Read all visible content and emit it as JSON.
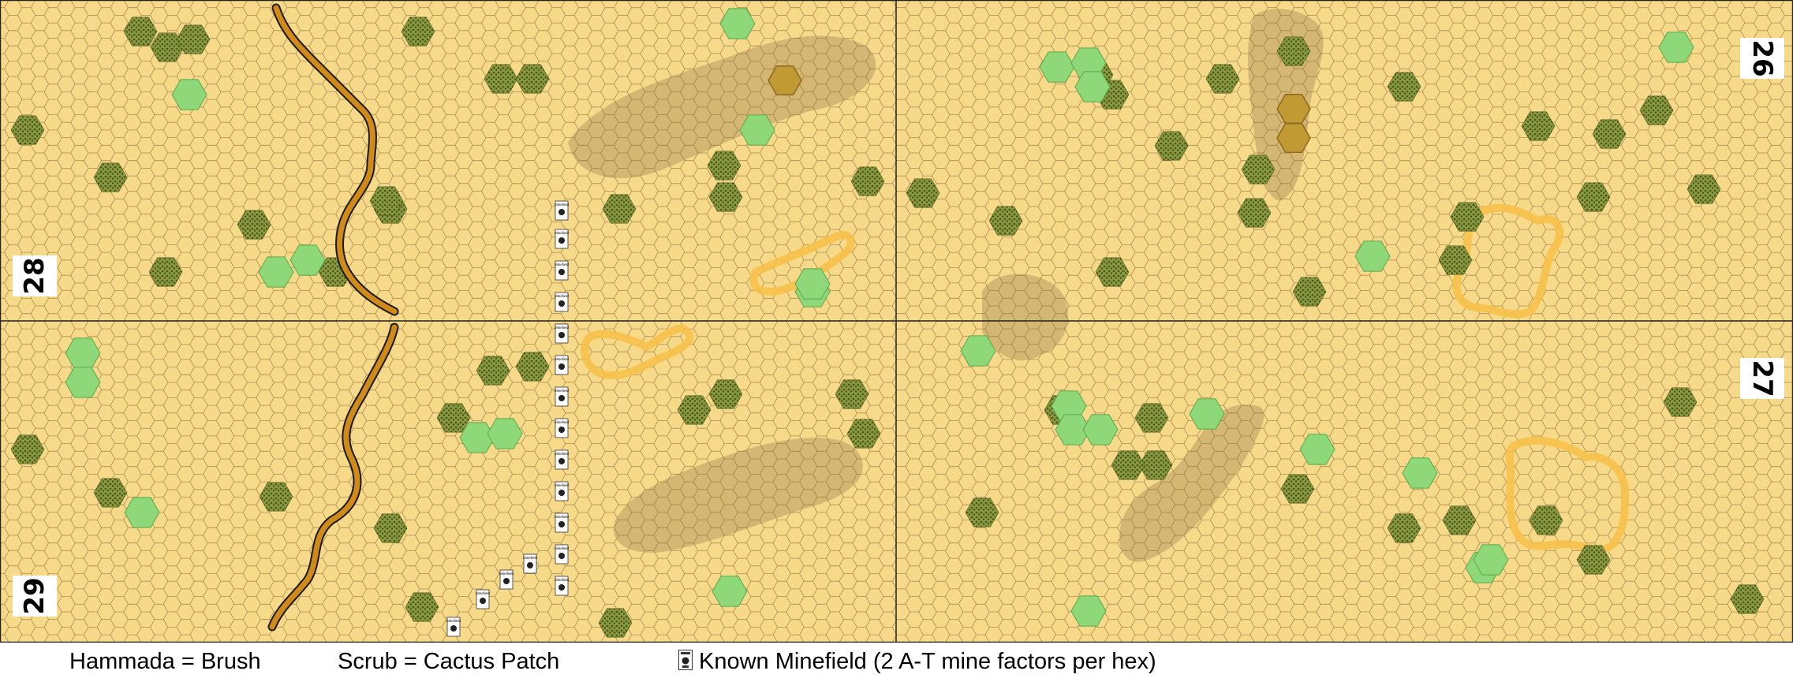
{
  "boards": [
    {
      "id": "28",
      "label": "28",
      "edge": "left"
    },
    {
      "id": "29",
      "label": "29",
      "edge": "left"
    },
    {
      "id": "26",
      "label": "26",
      "edge": "right"
    },
    {
      "id": "27",
      "label": "27",
      "edge": "right"
    }
  ],
  "terrain": {
    "open_ground": "Open Ground",
    "hammada": "Hammada",
    "scrub": "Scrub",
    "hillock": "Hillock",
    "deir": "Deir",
    "wadi": "Wadi",
    "minefield_counter_text": "Minefield"
  },
  "colors": {
    "open_ground": "#f7d98a",
    "hex_line": "#8b6f3a",
    "hillock": "#c9ad6d",
    "hammada": "#7a8a3a",
    "scrub": "#8fd87a",
    "deir_rim": "#f6c04a",
    "wadi_fill": "#d08a1a",
    "wadi_edge": "#1a1a1a",
    "board_border": "#222222",
    "crest_hex": "#c29a33"
  },
  "legend": {
    "hammada": "Hammada = Brush",
    "scrub": "Scrub = Cactus Patch",
    "minefield": "Known Minefield (2 A-T mine factors per hex)",
    "minefield_icon": "minefield-counter-icon"
  }
}
